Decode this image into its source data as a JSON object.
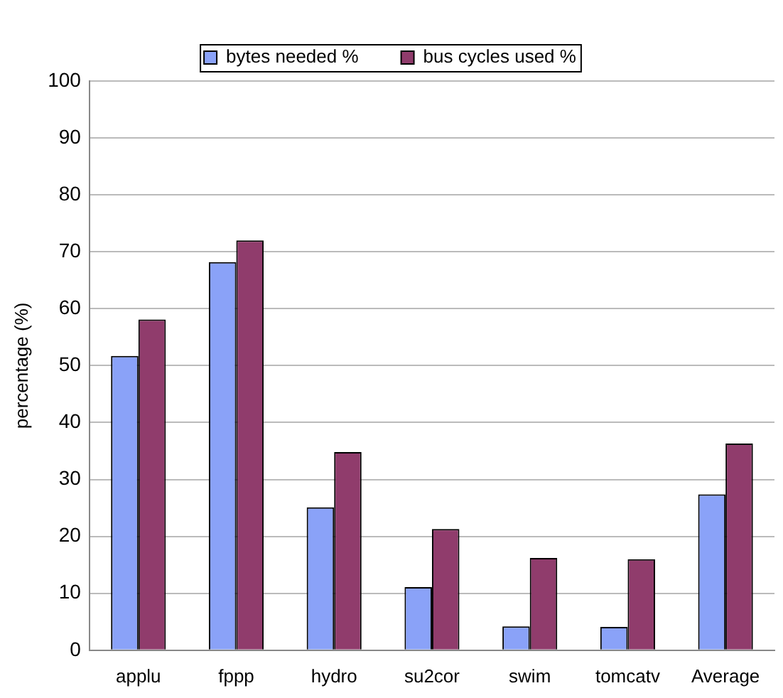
{
  "chart_data": {
    "type": "bar",
    "ylabel": "percentage (%)",
    "categories": [
      "applu",
      "fppp",
      "hydro",
      "su2cor",
      "swim",
      "tomcatv",
      "Average"
    ],
    "series": [
      {
        "name": "bytes needed %",
        "color": "#8aa2f8",
        "values": [
          51.7,
          68.2,
          25.1,
          11.1,
          4.2,
          4.1,
          27.4
        ]
      },
      {
        "name": "bus cycles used %",
        "color": "#903c6c",
        "values": [
          58.1,
          72.0,
          34.8,
          21.3,
          16.2,
          16.0,
          36.3
        ]
      }
    ],
    "ylim": [
      0,
      100
    ],
    "yticks": [
      0,
      10,
      20,
      30,
      40,
      50,
      60,
      70,
      80,
      90,
      100
    ],
    "grid": "y",
    "legend": "top"
  }
}
